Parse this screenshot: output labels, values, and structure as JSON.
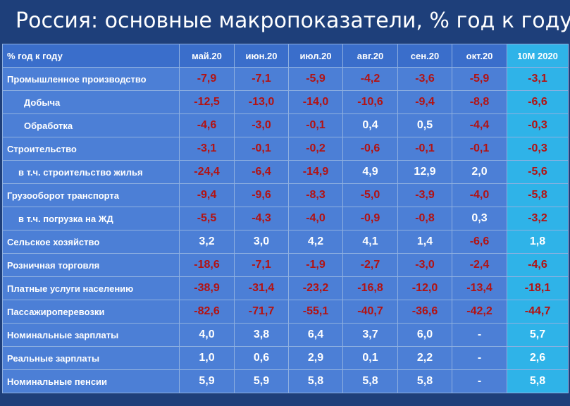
{
  "title": "Россия: основные макропоказатели, % год к году",
  "colors": {
    "background": "#1e3f7a",
    "header": "#3a6ecb",
    "cell": "#4c7fd6",
    "total_column": "#2fb3e8",
    "negative": "#b31212",
    "positive": "#ffffff"
  },
  "table": {
    "columns": [
      "% год к году",
      "май.20",
      "июн.20",
      "июл.20",
      "авг.20",
      "сен.20",
      "окт.20",
      "10М 2020"
    ],
    "rows": [
      {
        "label": "Промышленное производство",
        "indent": 0,
        "values": [
          "-7,9",
          "-7,1",
          "-5,9",
          "-4,2",
          "-3,6",
          "-5,9",
          "-3,1"
        ]
      },
      {
        "label": "Добыча",
        "indent": 1,
        "values": [
          "-12,5",
          "-13,0",
          "-14,0",
          "-10,6",
          "-9,4",
          "-8,8",
          "-6,6"
        ]
      },
      {
        "label": "Обработка",
        "indent": 1,
        "values": [
          "-4,6",
          "-3,0",
          "-0,1",
          "0,4",
          "0,5",
          "-4,4",
          "-0,3"
        ]
      },
      {
        "label": "Строительство",
        "indent": 0,
        "values": [
          "-3,1",
          "-0,1",
          "-0,2",
          "-0,6",
          "-0,1",
          "-0,1",
          "-0,3"
        ]
      },
      {
        "label": "в т.ч. строительство жилья",
        "indent": 2,
        "values": [
          "-24,4",
          "-6,4",
          "-14,9",
          "4,9",
          "12,9",
          "2,0",
          "-5,6"
        ]
      },
      {
        "label": "Грузооборот транспорта",
        "indent": 0,
        "values": [
          "-9,4",
          "-9,6",
          "-8,3",
          "-5,0",
          "-3,9",
          "-4,0",
          "-5,8"
        ]
      },
      {
        "label": "в т.ч. погрузка на ЖД",
        "indent": 2,
        "values": [
          "-5,5",
          "-4,3",
          "-4,0",
          "-0,9",
          "-0,8",
          "0,3",
          "-3,2"
        ]
      },
      {
        "label": "Сельское хозяйство",
        "indent": 0,
        "values": [
          "3,2",
          "3,0",
          "4,2",
          "4,1",
          "1,4",
          "-6,6",
          "1,8"
        ]
      },
      {
        "label": "Розничная торговля",
        "indent": 0,
        "values": [
          "-18,6",
          "-7,1",
          "-1,9",
          "-2,7",
          "-3,0",
          "-2,4",
          "-4,6"
        ]
      },
      {
        "label": "Платные услуги населению",
        "indent": 0,
        "values": [
          "-38,9",
          "-31,4",
          "-23,2",
          "-16,8",
          "-12,0",
          "-13,4",
          "-18,1"
        ]
      },
      {
        "label": "Пассажироперевозки",
        "indent": 0,
        "values": [
          "-82,6",
          "-71,7",
          "-55,1",
          "-40,7",
          "-36,6",
          "-42,2",
          "-44,7"
        ]
      },
      {
        "label": "Номинальные зарплаты",
        "indent": 0,
        "values": [
          "4,0",
          "3,8",
          "6,4",
          "3,7",
          "6,0",
          "-",
          "5,7"
        ]
      },
      {
        "label": "Реальные зарплаты",
        "indent": 0,
        "values": [
          "1,0",
          "0,6",
          "2,9",
          "0,1",
          "2,2",
          "-",
          "2,6"
        ]
      },
      {
        "label": "Номинальные пенсии",
        "indent": 0,
        "values": [
          "5,9",
          "5,9",
          "5,8",
          "5,8",
          "5,8",
          "-",
          "5,8"
        ]
      }
    ]
  }
}
